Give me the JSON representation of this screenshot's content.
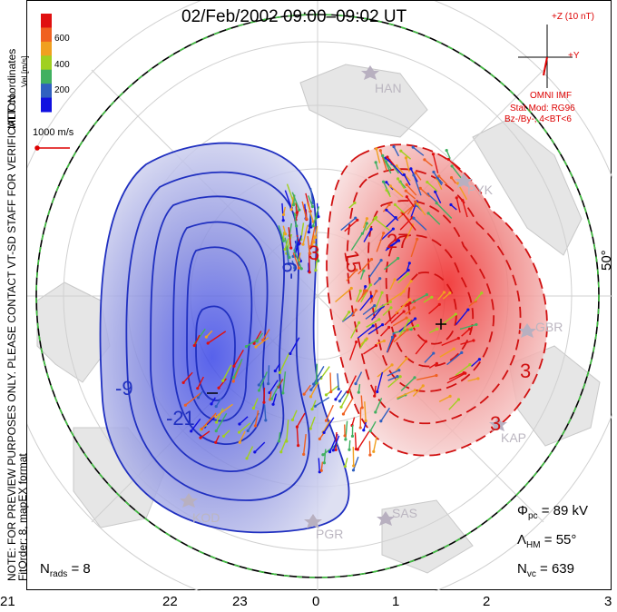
{
  "title": "02/Feb/2002 09:00–09:02 UT",
  "side_note": "NOTE: FOR PREVIEW PURPOSES ONLY. PLEASE CONTACT VT-SD STAFF FOR VERIFICATION.",
  "fit_order": "FitOrder: 8, mapEX format",
  "coords_label": "MLT coordinates",
  "colorbar": {
    "axis_label": "Vel [m/s]",
    "ticks": [
      "600",
      "400",
      "200"
    ],
    "colors": [
      "#e01010",
      "#f06020",
      "#f0a020",
      "#a0d020",
      "#40b060",
      "#3060c0",
      "#1010e0"
    ]
  },
  "vector_scale": "1000 m/s",
  "imf": {
    "scale": "+Z (10 nT)",
    "y_label": "+Y",
    "source": "OMNI IMF",
    "model1": "Stat Mod: RG96",
    "model2": "Bz-/By-, 4<BT<6"
  },
  "stats": {
    "phi_label": "Φ",
    "phi_sub": "pc",
    "phi_value": "= 89 kV",
    "lambda_label": "Λ",
    "lambda_sub": "HM",
    "lambda_value": "= 55°",
    "nvc_label": "N",
    "nvc_sub": "vc",
    "nvc_value": "= 639",
    "nrads_label": "N",
    "nrads_sub": "rads",
    "nrads_value": "= 8"
  },
  "latitude_label": "50°",
  "mlt_ticks": [
    "21",
    "22",
    "23",
    "0",
    "1",
    "2",
    "3"
  ],
  "stations": [
    "HAN",
    "PYK",
    "GBR",
    "KAP",
    "SAS",
    "PGR",
    "KOD"
  ],
  "contour_labels": {
    "negative": [
      "-9",
      "-9",
      "-21",
      "-3"
    ],
    "positive": [
      "3",
      "15",
      "27",
      "3",
      "3"
    ]
  },
  "colors": {
    "negative": "#2030c0",
    "positive": "#d01010",
    "boundary": "#40c040"
  }
}
